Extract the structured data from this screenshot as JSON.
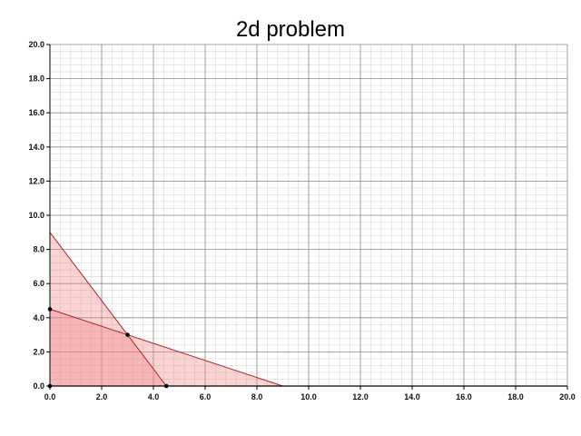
{
  "chart_data": {
    "type": "area",
    "title": "2d problem",
    "xlabel": "",
    "ylabel": "",
    "xlim": [
      0,
      20
    ],
    "ylim": [
      0,
      20
    ],
    "major_tick_step": 2,
    "minor_tick_step": 0.4,
    "grid": true,
    "series": [
      {
        "type": "line",
        "points": [
          [
            0,
            9
          ],
          [
            4.5,
            0
          ]
        ],
        "color": "#b22222"
      },
      {
        "type": "line",
        "points": [
          [
            0,
            4.5
          ],
          [
            9,
            0
          ]
        ],
        "color": "#b22222"
      }
    ],
    "regions": [
      {
        "points": [
          [
            0,
            0
          ],
          [
            0,
            9
          ],
          [
            4.5,
            0
          ]
        ],
        "fill": "#f08080",
        "opacity": 0.35
      },
      {
        "points": [
          [
            0,
            0
          ],
          [
            0,
            4.5
          ],
          [
            9,
            0
          ]
        ],
        "fill": "#f08080",
        "opacity": 0.35
      }
    ],
    "points": [
      {
        "x": 0,
        "y": 0
      },
      {
        "x": 0,
        "y": 4.5
      },
      {
        "x": 3,
        "y": 3
      },
      {
        "x": 4.5,
        "y": 0
      }
    ],
    "xticks": [
      "0.0",
      "2.0",
      "4.0",
      "6.0",
      "8.0",
      "10.0",
      "12.0",
      "14.0",
      "16.0",
      "18.0",
      "20.0"
    ],
    "yticks": [
      "0.0",
      "2.0",
      "4.0",
      "6.0",
      "8.0",
      "10.0",
      "12.0",
      "14.0",
      "16.0",
      "18.0",
      "20.0"
    ]
  }
}
